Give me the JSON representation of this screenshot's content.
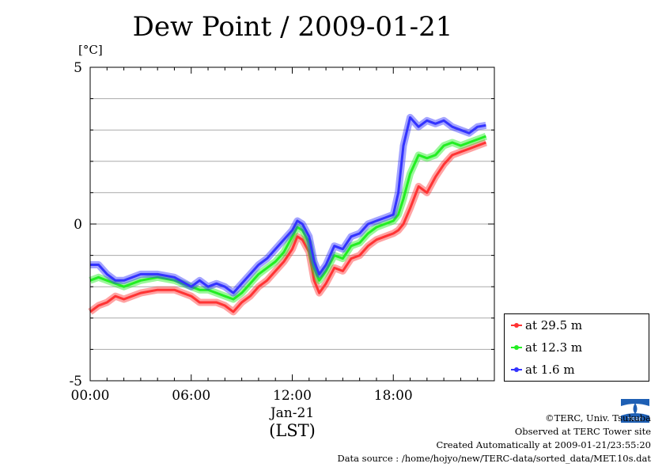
{
  "title": "Dew Point / 2009-01-21",
  "unit_label": "[°C]",
  "x_axis": {
    "date_label": "Jan-21",
    "tz_label": "(LST)"
  },
  "footer": {
    "copyright": "©TERC, Univ. Tsukuba",
    "observed": "Observed at TERC Tower site",
    "created": "Created Automatically at 2009-01-21/23:55:20",
    "source": "Data source : /home/hojyo/new/TERC-data/sorted_data/MET.10s.dat"
  },
  "logo_text": "TERC",
  "chart_data": {
    "type": "line",
    "title": "Dew Point / 2009-01-21",
    "ylabel": "[°C]",
    "xlabel": "(LST)",
    "ylim": [
      -5,
      5
    ],
    "xlim": [
      0,
      24
    ],
    "xticks": [
      {
        "value": 0,
        "label": "00:00"
      },
      {
        "value": 6,
        "label": "06:00"
      },
      {
        "value": 12,
        "label": "12:00"
      },
      {
        "value": 18,
        "label": "18:00"
      }
    ],
    "yticks": [
      {
        "value": 5,
        "label": "5"
      },
      {
        "value": 0,
        "label": "0"
      },
      {
        "value": -5,
        "label": "-5"
      }
    ],
    "grid": true,
    "legend_position": "bottom-right",
    "series": [
      {
        "name": "at 29.5 m",
        "color": "#ff3333",
        "x": [
          0,
          0.5,
          1,
          1.5,
          2,
          3,
          4,
          5,
          6,
          6.5,
          7,
          7.5,
          8,
          8.5,
          9,
          9.5,
          10,
          10.5,
          11,
          11.5,
          12,
          12.3,
          12.6,
          13,
          13.3,
          13.6,
          14,
          14.5,
          15,
          15.5,
          16,
          16.5,
          17,
          17.5,
          18,
          18.3,
          18.6,
          19,
          19.5,
          20,
          20.5,
          21,
          21.5,
          22,
          22.5,
          23,
          23.5
        ],
        "y": [
          -2.8,
          -2.6,
          -2.5,
          -2.3,
          -2.4,
          -2.2,
          -2.1,
          -2.1,
          -2.3,
          -2.5,
          -2.5,
          -2.5,
          -2.6,
          -2.8,
          -2.5,
          -2.3,
          -2.0,
          -1.8,
          -1.5,
          -1.2,
          -0.8,
          -0.4,
          -0.5,
          -0.9,
          -1.8,
          -2.2,
          -1.9,
          -1.4,
          -1.5,
          -1.1,
          -1.0,
          -0.7,
          -0.5,
          -0.4,
          -0.3,
          -0.2,
          0.0,
          0.5,
          1.2,
          1.0,
          1.5,
          1.9,
          2.2,
          2.3,
          2.4,
          2.5,
          2.6
        ]
      },
      {
        "name": "at 12.3 m",
        "color": "#22ee22",
        "x": [
          0,
          0.5,
          1,
          1.5,
          2,
          3,
          4,
          5,
          6,
          6.5,
          7,
          7.5,
          8,
          8.5,
          9,
          9.5,
          10,
          10.5,
          11,
          11.5,
          12,
          12.3,
          12.6,
          13,
          13.3,
          13.6,
          14,
          14.5,
          15,
          15.5,
          16,
          16.5,
          17,
          17.5,
          18,
          18.3,
          18.6,
          19,
          19.5,
          20,
          20.5,
          21,
          21.5,
          22,
          22.5,
          23,
          23.5
        ],
        "y": [
          -1.8,
          -1.7,
          -1.8,
          -1.9,
          -2.0,
          -1.8,
          -1.7,
          -1.8,
          -2.0,
          -2.1,
          -2.1,
          -2.2,
          -2.3,
          -2.4,
          -2.2,
          -1.9,
          -1.6,
          -1.4,
          -1.2,
          -0.9,
          -0.4,
          -0.1,
          -0.2,
          -0.6,
          -1.4,
          -1.8,
          -1.5,
          -1.0,
          -1.1,
          -0.7,
          -0.6,
          -0.3,
          -0.1,
          0.0,
          0.1,
          0.3,
          0.8,
          1.6,
          2.2,
          2.1,
          2.2,
          2.5,
          2.6,
          2.5,
          2.6,
          2.7,
          2.8
        ]
      },
      {
        "name": "at 1.6 m",
        "color": "#3333ff",
        "x": [
          0,
          0.5,
          1,
          1.5,
          2,
          3,
          4,
          5,
          6,
          6.5,
          7,
          7.5,
          8,
          8.5,
          9,
          9.5,
          10,
          10.5,
          11,
          11.5,
          12,
          12.3,
          12.6,
          13,
          13.3,
          13.6,
          14,
          14.5,
          15,
          15.5,
          16,
          16.5,
          17,
          17.5,
          18,
          18.3,
          18.6,
          19,
          19.5,
          20,
          20.5,
          21,
          21.5,
          22,
          22.5,
          23,
          23.5
        ],
        "y": [
          -1.3,
          -1.3,
          -1.6,
          -1.8,
          -1.8,
          -1.6,
          -1.6,
          -1.7,
          -2.0,
          -1.8,
          -2.0,
          -1.9,
          -2.0,
          -2.2,
          -1.9,
          -1.6,
          -1.3,
          -1.1,
          -0.8,
          -0.5,
          -0.2,
          0.1,
          0.0,
          -0.4,
          -1.2,
          -1.6,
          -1.3,
          -0.7,
          -0.8,
          -0.4,
          -0.3,
          0.0,
          0.1,
          0.2,
          0.3,
          1.0,
          2.5,
          3.4,
          3.1,
          3.3,
          3.2,
          3.3,
          3.1,
          3.0,
          2.9,
          3.1,
          3.15
        ]
      }
    ]
  }
}
